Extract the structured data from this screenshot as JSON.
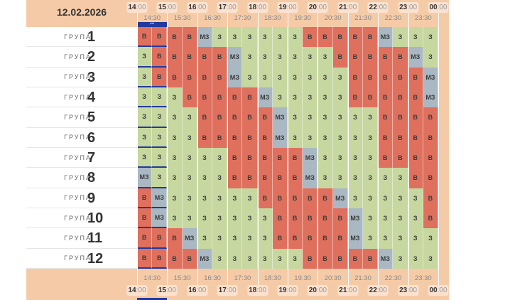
{
  "date": "12.02.2026",
  "group_label": "ГРУПА",
  "now_marker": "•••",
  "hours": [
    {
      "h": "14",
      "m": ":00"
    },
    {
      "h": "15",
      "m": ":00"
    },
    {
      "h": "16",
      "m": ":00"
    },
    {
      "h": "17",
      "m": ":00"
    },
    {
      "h": "18",
      "m": ":00"
    },
    {
      "h": "19",
      "m": ":00"
    },
    {
      "h": "20",
      "m": ":00"
    },
    {
      "h": "21",
      "m": ":00"
    },
    {
      "h": "22",
      "m": ":00"
    },
    {
      "h": "23",
      "m": ":00"
    },
    {
      "h": "00",
      "m": ":00"
    }
  ],
  "half_hours": [
    "14:30",
    "15:30",
    "16:30",
    "17:30",
    "18:30",
    "19:30",
    "20:30",
    "21:30",
    "22:30",
    "23:30"
  ],
  "colors": {
    "В": "#e0705e",
    "З": "#c6d79f",
    "МЗ": "#a9b8c3"
  },
  "current_slots": [
    0,
    1
  ],
  "groups": [
    {
      "number": "1",
      "slots": [
        "В",
        "В",
        "В",
        "В",
        "МЗ",
        "З",
        "З",
        "З",
        "З",
        "З",
        "З",
        "В",
        "В",
        "В",
        "В",
        "В",
        "МЗ",
        "З",
        "З",
        "З"
      ]
    },
    {
      "number": "2",
      "slots": [
        "З",
        "В",
        "В",
        "В",
        "В",
        "В",
        "МЗ",
        "З",
        "З",
        "З",
        "З",
        "З",
        "З",
        "В",
        "В",
        "В",
        "В",
        "В",
        "МЗ",
        "З"
      ]
    },
    {
      "number": "3",
      "slots": [
        "З",
        "В",
        "В",
        "В",
        "В",
        "В",
        "МЗ",
        "З",
        "З",
        "З",
        "З",
        "З",
        "З",
        "З",
        "В",
        "В",
        "В",
        "В",
        "В",
        "МЗ"
      ]
    },
    {
      "number": "4",
      "slots": [
        "З",
        "З",
        "З",
        "В",
        "В",
        "В",
        "В",
        "В",
        "МЗ",
        "З",
        "З",
        "З",
        "З",
        "З",
        "В",
        "В",
        "В",
        "В",
        "В",
        "МЗ"
      ]
    },
    {
      "number": "5",
      "slots": [
        "З",
        "З",
        "З",
        "З",
        "В",
        "В",
        "В",
        "В",
        "В",
        "МЗ",
        "З",
        "З",
        "З",
        "З",
        "З",
        "З",
        "В",
        "В",
        "В",
        "В"
      ]
    },
    {
      "number": "6",
      "slots": [
        "З",
        "З",
        "З",
        "З",
        "В",
        "В",
        "В",
        "В",
        "В",
        "МЗ",
        "З",
        "З",
        "З",
        "З",
        "З",
        "З",
        "В",
        "В",
        "В",
        "В"
      ]
    },
    {
      "number": "7",
      "slots": [
        "З",
        "З",
        "З",
        "З",
        "З",
        "З",
        "В",
        "В",
        "В",
        "В",
        "В",
        "МЗ",
        "З",
        "З",
        "З",
        "З",
        "В",
        "В",
        "В",
        "В"
      ]
    },
    {
      "number": "8",
      "slots": [
        "МЗ",
        "З",
        "З",
        "З",
        "З",
        "З",
        "В",
        "В",
        "В",
        "В",
        "В",
        "МЗ",
        "З",
        "З",
        "З",
        "З",
        "З",
        "З",
        "В",
        "В"
      ]
    },
    {
      "number": "9",
      "slots": [
        "В",
        "МЗ",
        "З",
        "З",
        "З",
        "З",
        "З",
        "З",
        "В",
        "В",
        "В",
        "В",
        "В",
        "МЗ",
        "З",
        "З",
        "З",
        "З",
        "З",
        "В"
      ]
    },
    {
      "number": "10",
      "slots": [
        "В",
        "МЗ",
        "З",
        "З",
        "З",
        "З",
        "З",
        "З",
        "З",
        "В",
        "В",
        "В",
        "В",
        "В",
        "МЗ",
        "З",
        "З",
        "З",
        "З",
        "В"
      ]
    },
    {
      "number": "11",
      "slots": [
        "В",
        "В",
        "В",
        "МЗ",
        "З",
        "З",
        "З",
        "З",
        "З",
        "В",
        "В",
        "В",
        "В",
        "В",
        "МЗ",
        "З",
        "З",
        "З",
        "З",
        "З"
      ]
    },
    {
      "number": "12",
      "slots": [
        "В",
        "В",
        "В",
        "В",
        "МЗ",
        "З",
        "З",
        "З",
        "З",
        "З",
        "З",
        "В",
        "В",
        "В",
        "В",
        "В",
        "МЗ",
        "З",
        "З",
        "З"
      ]
    }
  ]
}
